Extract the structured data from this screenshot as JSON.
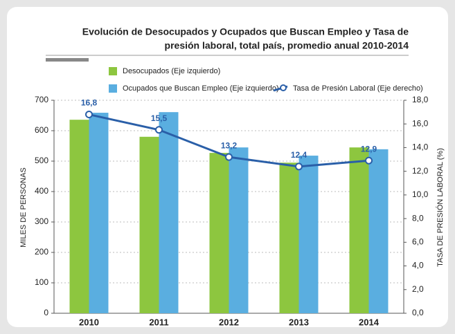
{
  "chart_data": {
    "type": "bar",
    "title": [
      "Evolución de Desocupados y Ocupados que Buscan Empleo y Tasa de",
      "presión laboral, total país, promedio anual 2010-2014"
    ],
    "ylabel": "MILES DE PERSONAS",
    "y2label": "TASA DE PRESIÓN LABORAL (%)",
    "categories": [
      "2010",
      "2011",
      "2012",
      "2013",
      "2014"
    ],
    "series": [
      {
        "name": "Desocupados (Eje izquierdo)",
        "color": "#8dc63f",
        "values": [
          636,
          580,
          527,
          495,
          545
        ]
      },
      {
        "name": "Ocupados que Buscan Empleo (Eje izquierdo)",
        "color": "#5aaee0",
        "values": [
          659,
          661,
          545,
          518,
          539
        ]
      },
      {
        "name": "Tasa de Presión Laboral (Eje derecho)",
        "color": "#2a5fa8",
        "type": "line",
        "axis": "y2",
        "values": [
          16.8,
          15.5,
          13.2,
          12.4,
          12.9
        ],
        "value_labels": [
          "16,8",
          "15,5",
          "13,2",
          "12,4",
          "12,9"
        ]
      }
    ],
    "ylim": [
      0,
      700
    ],
    "yticks": [
      0,
      100,
      200,
      300,
      400,
      500,
      600,
      700
    ],
    "y2lim": [
      0,
      18
    ],
    "y2ticks": [
      {
        "value": 0,
        "label": "0,0"
      },
      {
        "value": 2,
        "label": "2,0"
      },
      {
        "value": 4,
        "label": "4,0"
      },
      {
        "value": 6,
        "label": "6,0"
      },
      {
        "value": 8,
        "label": "8,0"
      },
      {
        "value": 10,
        "label": "10,0"
      },
      {
        "value": 12,
        "label": "12,0"
      },
      {
        "value": 14,
        "label": "14,0"
      },
      {
        "value": 16,
        "label": "16,0"
      },
      {
        "value": 18,
        "label": "18,0"
      }
    ],
    "grid": true
  }
}
